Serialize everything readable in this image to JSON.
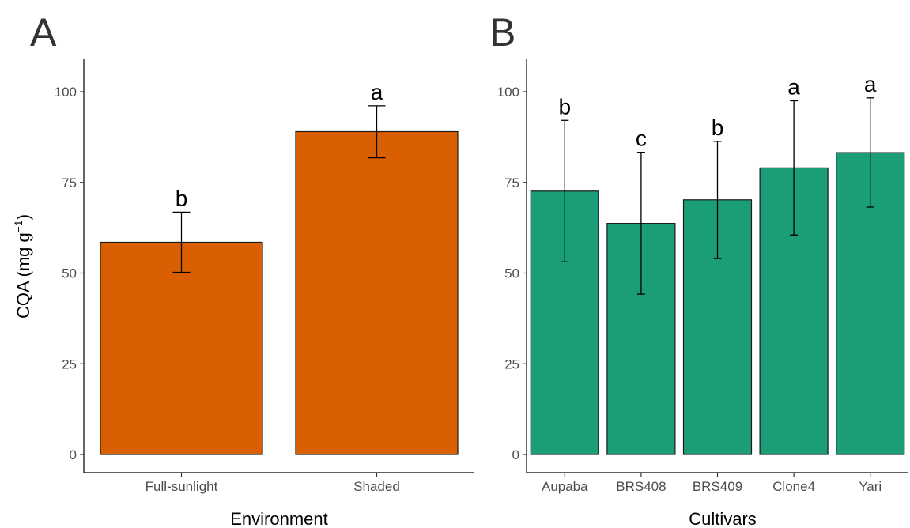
{
  "figure": {
    "y_axis_title": "CQA (mg g",
    "y_axis_title_superscript": "−1",
    "y_axis_title_suffix": ")"
  },
  "chart_data": [
    {
      "type": "bar",
      "panel_label": "A",
      "title": "",
      "xlabel": "Environment",
      "ylabel": "CQA (mg g−1)",
      "ylim": [
        0,
        110
      ],
      "yticks": [
        0,
        25,
        50,
        75,
        100
      ],
      "categories": [
        "Full-sunlight",
        "Shaded"
      ],
      "values": [
        58.5,
        89
      ],
      "error_low": [
        50.2,
        81.8
      ],
      "error_high": [
        66.8,
        96.1
      ],
      "significance": [
        "b",
        "a"
      ],
      "color": "#D95F02",
      "grid": false,
      "legend": "none"
    },
    {
      "type": "bar",
      "panel_label": "B",
      "title": "",
      "xlabel": "Cultivars",
      "ylabel": "",
      "ylim": [
        0,
        110
      ],
      "yticks": [
        0,
        25,
        50,
        75,
        100
      ],
      "categories": [
        "Aupaba",
        "BRS408",
        "BRS409",
        "Clone4",
        "Yari"
      ],
      "values": [
        72.6,
        63.7,
        70.2,
        79,
        83.2
      ],
      "error_low": [
        53.1,
        44.2,
        54,
        60.5,
        68.2
      ],
      "error_high": [
        92.1,
        83.3,
        86.3,
        97.5,
        98.3
      ],
      "significance": [
        "b",
        "c",
        "b",
        "a",
        "a"
      ],
      "color": "#1B9E77",
      "grid": false,
      "legend": "none"
    }
  ]
}
